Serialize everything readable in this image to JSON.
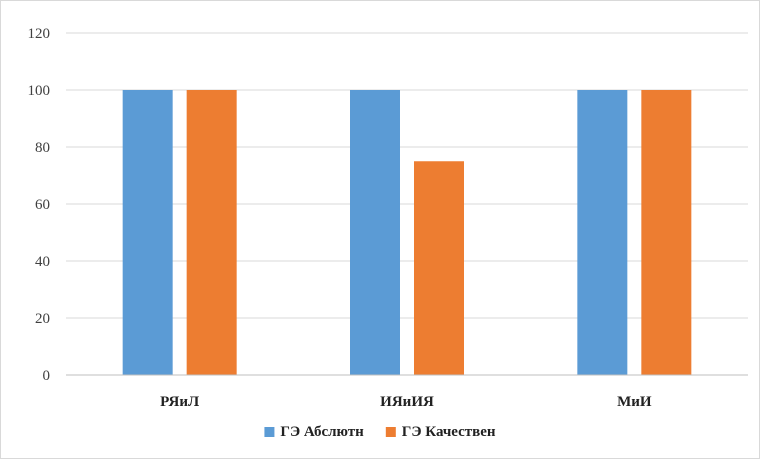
{
  "chart_data": {
    "type": "bar",
    "categories": [
      "РЯиЛ",
      "ИЯиИЯ",
      "МиИ"
    ],
    "series": [
      {
        "name": "ГЭ Абслютн",
        "values": [
          100,
          100,
          100
        ],
        "color": "#5b9bd5"
      },
      {
        "name": "ГЭ Качествен",
        "values": [
          100,
          75,
          100
        ],
        "color": "#ed7d31"
      }
    ],
    "ylim": [
      0,
      120
    ],
    "yticks": [
      0,
      20,
      40,
      60,
      80,
      100,
      120
    ],
    "grid": true,
    "legend_position": "bottom"
  }
}
